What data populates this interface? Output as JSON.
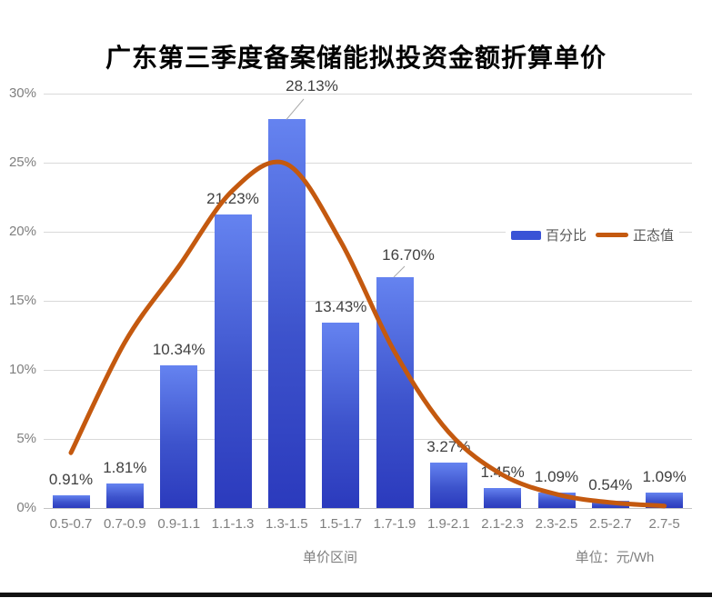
{
  "chart_data": {
    "type": "bar",
    "combo": "bar + smooth line (normal distribution fit)",
    "title": "广东第三季度备案储能拟投资金额折算单价",
    "categories": [
      "0.5-0.7",
      "0.7-0.9",
      "0.9-1.1",
      "1.1-1.3",
      "1.3-1.5",
      "1.5-1.7",
      "1.7-1.9",
      "1.9-2.1",
      "2.1-2.3",
      "2.3-2.5",
      "2.5-2.7",
      "2.7-5"
    ],
    "series": [
      {
        "name": "百分比",
        "type": "bar",
        "values": [
          0.91,
          1.81,
          10.34,
          21.23,
          28.13,
          13.43,
          16.7,
          3.27,
          1.45,
          1.09,
          0.54,
          1.09
        ],
        "data_labels": [
          "0.91%",
          "1.81%",
          "10.34%",
          "21.23%",
          "28.13%",
          "13.43%",
          "16.70%",
          "3.27%",
          "1.45%",
          "1.09%",
          "0.54%",
          "1.09%"
        ]
      },
      {
        "name": "正态值",
        "type": "line",
        "estimated": true,
        "values": [
          4.0,
          12.0,
          17.5,
          23.0,
          24.9,
          19.3,
          11.3,
          5.5,
          2.4,
          1.0,
          0.4,
          0.15
        ]
      }
    ],
    "xlabel": "单价区间",
    "unit_label": "单位：元/Wh",
    "y_ticks": [
      "0%",
      "5%",
      "10%",
      "15%",
      "20%",
      "25%",
      "30%"
    ],
    "ylim": [
      0,
      30
    ],
    "grid": true,
    "legend": {
      "entries": [
        "百分比",
        "正态值"
      ],
      "position": "right-middle"
    },
    "colors": {
      "bar_gradient_top": "#6583F0",
      "bar_gradient_bottom": "#2B3ABD",
      "line": "#C4590F",
      "grid": "#D9D9D9",
      "axis_text": "#7F7F7F",
      "data_label_text": "#404040",
      "legend_text": "#595959",
      "title_text": "#000000"
    }
  }
}
